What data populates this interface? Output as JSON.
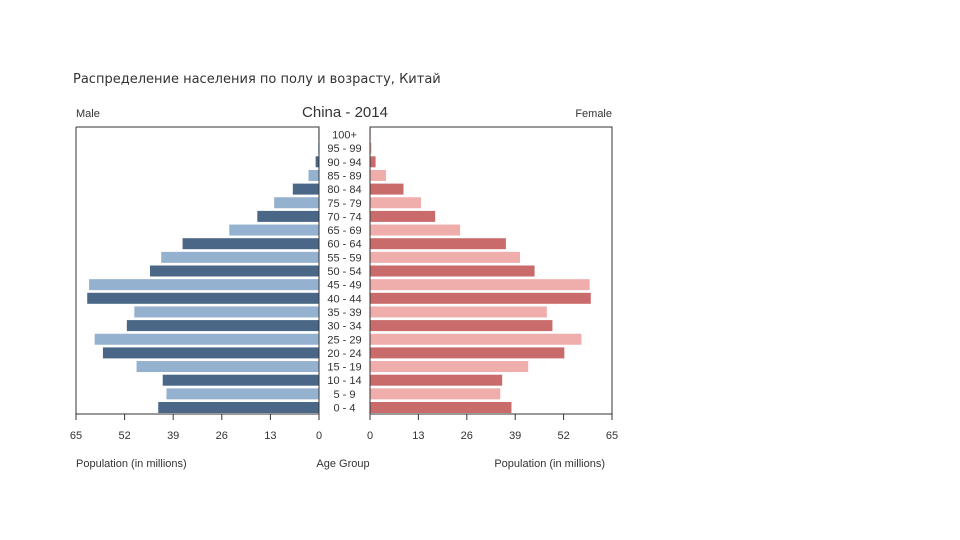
{
  "slide": {
    "title": "Распределение населения по полу и возрасту, Китай"
  },
  "chart_data": {
    "type": "bar",
    "subtype": "population-pyramid",
    "title": "China - 2014",
    "male_label": "Male",
    "female_label": "Female",
    "center_label": "Age Group",
    "xlabel_left": "Population (in millions)",
    "xlabel_right": "Population (in millions)",
    "xlim": [
      0,
      65
    ],
    "ticks": [
      65,
      52,
      39,
      26,
      13,
      0
    ],
    "ticks_right": [
      0,
      13,
      26,
      39,
      52,
      65
    ],
    "categories": [
      "0 - 4",
      "5 - 9",
      "10 - 14",
      "15 - 19",
      "20 - 24",
      "25 - 29",
      "30 - 34",
      "35 - 39",
      "40 - 44",
      "45 - 49",
      "50 - 54",
      "55 - 59",
      "60 - 64",
      "65 - 69",
      "70 - 74",
      "75 - 79",
      "80 - 84",
      "85 - 89",
      "90 - 94",
      "95 - 99",
      "100+"
    ],
    "series": [
      {
        "name": "Male",
        "values": [
          43.0,
          40.8,
          41.8,
          48.8,
          57.8,
          60.0,
          51.4,
          49.4,
          62.0,
          61.5,
          45.2,
          42.2,
          36.5,
          24.0,
          16.5,
          12.0,
          7.0,
          2.8,
          0.9,
          0.2,
          0.05
        ]
      },
      {
        "name": "Female",
        "values": [
          38.0,
          35.0,
          35.5,
          42.5,
          52.2,
          56.8,
          49.0,
          47.5,
          59.3,
          59.0,
          44.2,
          40.3,
          36.5,
          24.2,
          17.5,
          13.7,
          9.0,
          4.3,
          1.5,
          0.4,
          0.1
        ]
      }
    ],
    "colors": {
      "male_dark": "#4a6787",
      "male_light": "#94b1cf",
      "female_dark": "#c96b6b",
      "female_light": "#efaeab",
      "axis": "#333333"
    }
  }
}
